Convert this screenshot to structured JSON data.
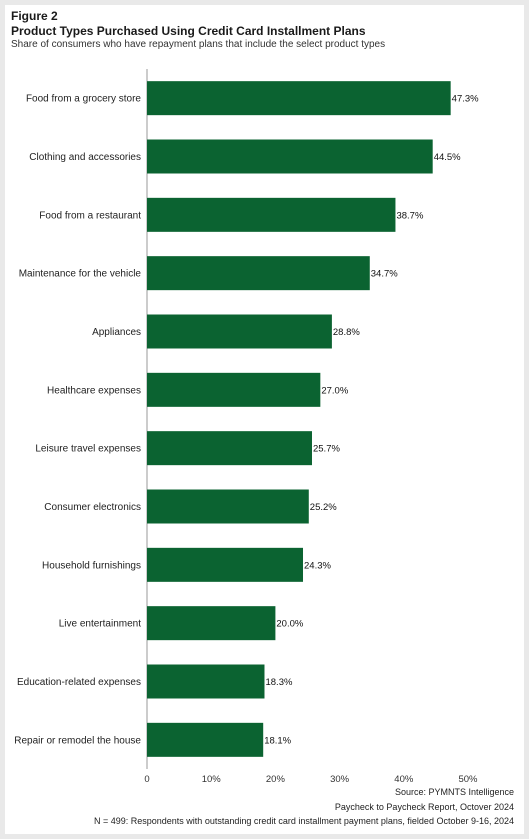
{
  "header": {
    "figure_label": "Figure 2",
    "title": "Product Types Purchased Using Credit Card Installment Plans",
    "subtitle": "Share of consumers who have repayment plans that include the select product types"
  },
  "footer": {
    "source": "Source: PYMNTS Intelligence",
    "report": "Paycheck to Paycheck Report, Octover 2024",
    "note": "N = 499: Respondents with outstanding  credit card installment payment plans, fielded October 9-16, 2024"
  },
  "colors": {
    "bar": "#0b6331",
    "background": "#ffffff",
    "page": "#e9e9e9"
  },
  "chart_data": {
    "type": "bar",
    "orientation": "horizontal",
    "categories": [
      "Food from a grocery store",
      "Clothing and accessories",
      "Food from a restaurant",
      "Maintenance for the vehicle",
      "Appliances",
      "Healthcare expenses",
      "Leisure travel expenses",
      "Consumer electronics",
      "Household furnishings",
      "Live entertainment",
      "Education-related expenses",
      "Repair or remodel the house"
    ],
    "values": [
      47.3,
      44.5,
      38.7,
      34.7,
      28.8,
      27.0,
      25.7,
      25.2,
      24.3,
      20.0,
      18.3,
      18.1
    ],
    "value_labels": [
      "47.3%",
      "44.5%",
      "38.7%",
      "34.7%",
      "28.8%",
      "27.0%",
      "25.7%",
      "25.2%",
      "24.3%",
      "20.0%",
      "18.3%",
      "18.1%"
    ],
    "xlim": [
      0,
      50
    ],
    "xticks": [
      0,
      10,
      20,
      30,
      40,
      50
    ],
    "xtick_labels": [
      "0",
      "10%",
      "20%",
      "30%",
      "40%",
      "50%"
    ],
    "grid": false,
    "legend": "none"
  }
}
